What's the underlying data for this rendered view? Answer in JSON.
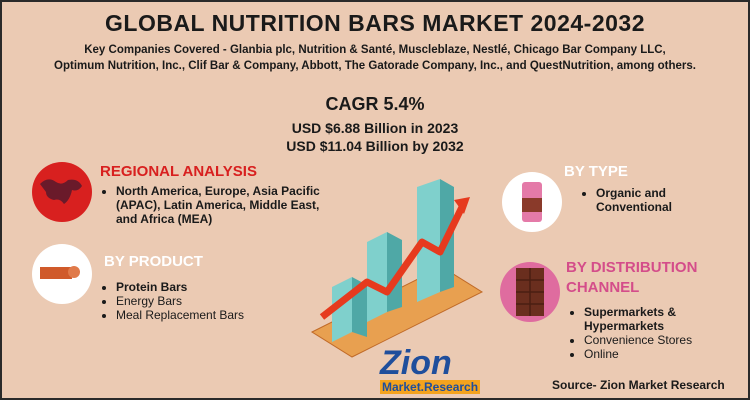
{
  "header": {
    "title": "GLOBAL NUTRITION BARS MARKET 2024-2032",
    "subtitle_lines": [
      "Key Companies Covered - Glanbia plc, Nutrition & Santé, Muscleblaze, Nestlé, Chicago Bar Company LLC,",
      "Optimum Nutrition, Inc., Clif Bar & Company, Abbott, The Gatorade Company, Inc., and QuestNutrition, among others."
    ]
  },
  "stats": {
    "cagr": "CAGR 5.4%",
    "lines": [
      "USD $6.88 Billion  in 2023",
      "USD $11.04 Billion   by 2032"
    ]
  },
  "sections": {
    "regional": {
      "heading": "REGIONAL ANALYSIS",
      "items": [
        "North America, Europe, Asia Pacific (APAC), Latin America, Middle East, and Africa (MEA)"
      ]
    },
    "product": {
      "heading": "BY PRODUCT",
      "items": [
        "Protein Bars",
        "Energy Bars",
        "Meal Replacement Bars"
      ]
    },
    "type": {
      "heading": "BY TYPE",
      "items": [
        "Organic and Conventional"
      ]
    },
    "distribution": {
      "heading": "BY DISTRIBUTION CHANNEL",
      "items": [
        "Supermarkets & Hypermarkets",
        "Convenience Stores",
        "Online"
      ]
    }
  },
  "logo": {
    "name": "Zion",
    "tagline": "Market.Research"
  },
  "source": "Source- Zion Market Research"
}
